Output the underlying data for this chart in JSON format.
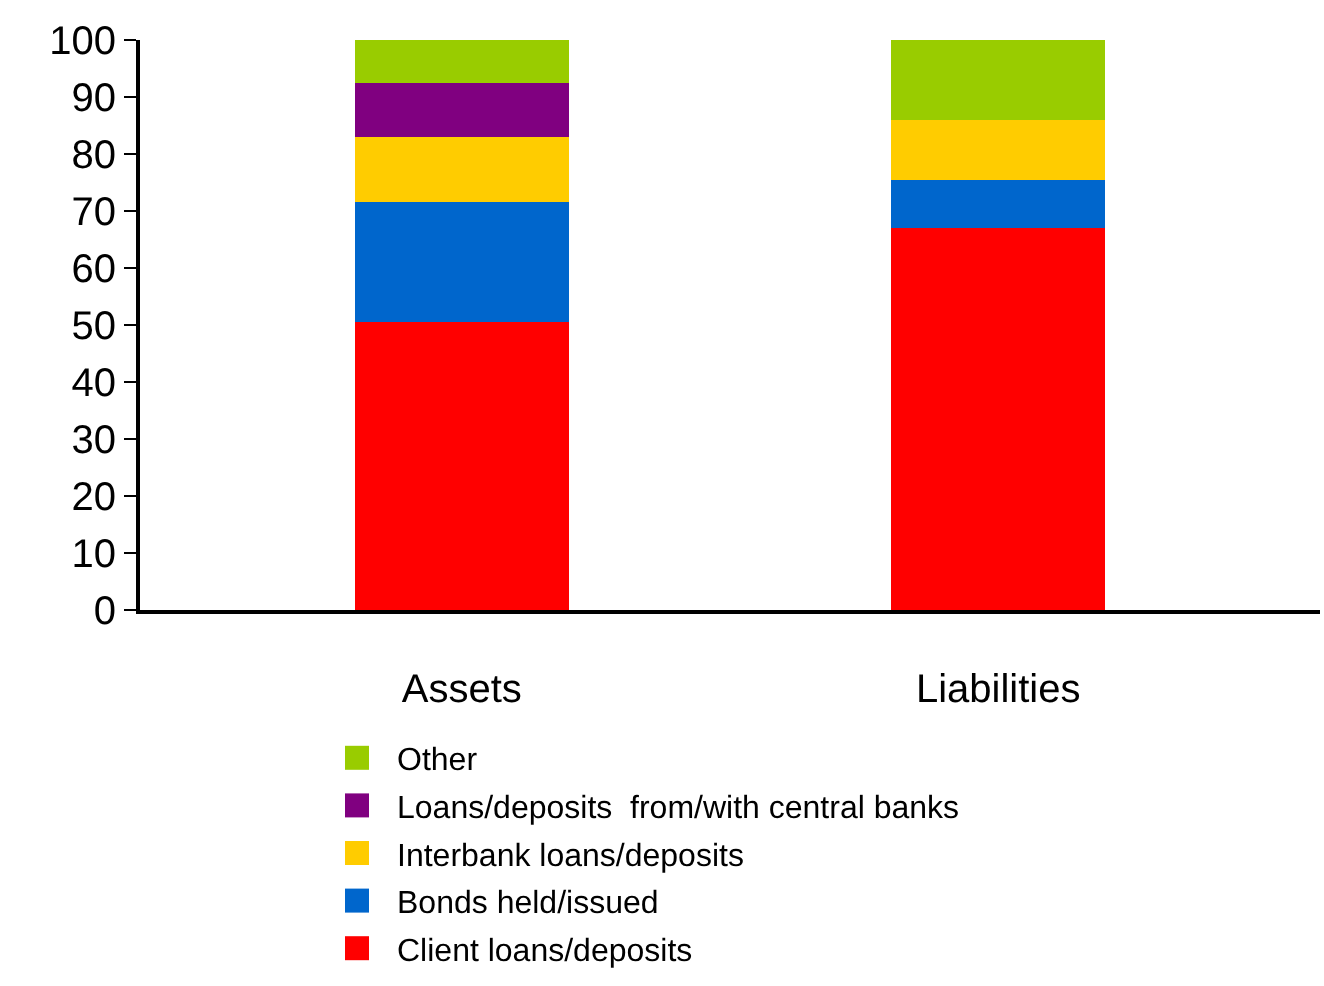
{
  "chart_data": {
    "type": "bar",
    "stacked": true,
    "categories": [
      "Assets",
      "Liabilities"
    ],
    "series": [
      {
        "name": "Client loans/deposits",
        "color": "#ff0000",
        "values": [
          50.5,
          67
        ]
      },
      {
        "name": "Bonds held/issued",
        "color": "#0066cc",
        "values": [
          21,
          8.5
        ]
      },
      {
        "name": "Interbank loans/deposits",
        "color": "#ffcc00",
        "values": [
          11.5,
          10.5
        ]
      },
      {
        "name": "Loans/deposits  from/with central banks",
        "color": "#800080",
        "values": [
          9.5,
          null
        ]
      },
      {
        "name": "Other",
        "color": "#99cc00",
        "values": [
          7.5,
          14
        ]
      }
    ],
    "ylim": [
      0,
      100
    ],
    "yticks": [
      0,
      10,
      20,
      30,
      40,
      50,
      60,
      70,
      80,
      90,
      100
    ],
    "legend": "bottom"
  }
}
